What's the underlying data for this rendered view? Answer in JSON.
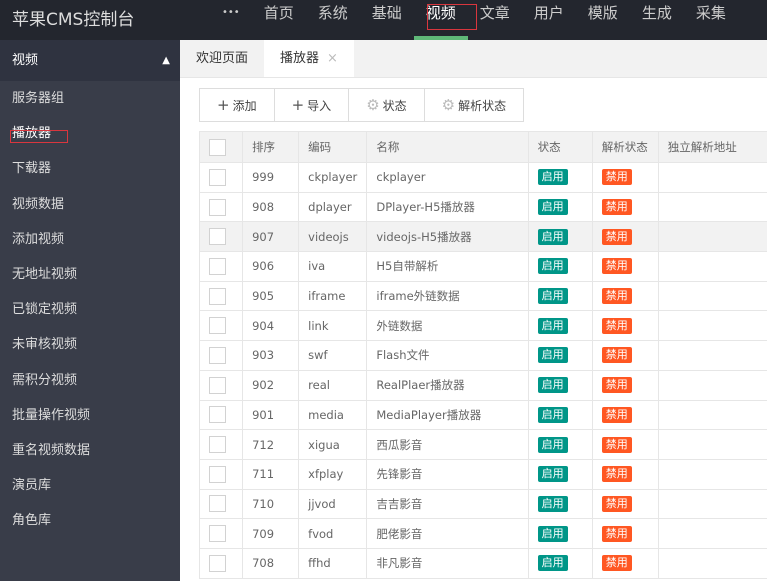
{
  "app": {
    "title": "苹果CMS控制台"
  },
  "nav": {
    "more": "•••",
    "items": [
      "首页",
      "系统",
      "基础",
      "视频",
      "文章",
      "用户",
      "模版",
      "生成",
      "采集"
    ],
    "active": 3
  },
  "sidebar": {
    "header": "视频",
    "items": [
      "服务器组",
      "播放器",
      "下载器",
      "视频数据",
      "添加视频",
      "无地址视频",
      "已锁定视频",
      "未审核视频",
      "需积分视频",
      "批量操作视频",
      "重名视频数据",
      "演员库",
      "角色库"
    ]
  },
  "tabs": [
    {
      "label": "欢迎页面"
    },
    {
      "label": "播放器",
      "close": "×"
    }
  ],
  "toolbar": {
    "add": "添加",
    "import": "导入",
    "status": "状态",
    "parse_status": "解析状态"
  },
  "colors": {
    "enabled": "#009688",
    "disabled": "#ff5722",
    "nav_active": "#5fb878"
  },
  "table": {
    "headers": [
      "排序",
      "编码",
      "名称",
      "状态",
      "解析状态",
      "独立解析地址"
    ],
    "rows": [
      [
        "999",
        "ckplayer",
        "ckplayer",
        "启用",
        "禁用"
      ],
      [
        "908",
        "dplayer",
        "DPlayer-H5播放器",
        "启用",
        "禁用"
      ],
      [
        "907",
        "videojs",
        "videojs-H5播放器",
        "启用",
        "禁用"
      ],
      [
        "906",
        "iva",
        "H5自带解析",
        "启用",
        "禁用"
      ],
      [
        "905",
        "iframe",
        "iframe外链数据",
        "启用",
        "禁用"
      ],
      [
        "904",
        "link",
        "外链数据",
        "启用",
        "禁用"
      ],
      [
        "903",
        "swf",
        "Flash文件",
        "启用",
        "禁用"
      ],
      [
        "902",
        "real",
        "RealPlaer播放器",
        "启用",
        "禁用"
      ],
      [
        "901",
        "media",
        "MediaPlayer播放器",
        "启用",
        "禁用"
      ],
      [
        "712",
        "xigua",
        "西瓜影音",
        "启用",
        "禁用"
      ],
      [
        "711",
        "xfplay",
        "先锋影音",
        "启用",
        "禁用"
      ],
      [
        "710",
        "jjvod",
        "吉吉影音",
        "启用",
        "禁用"
      ],
      [
        "709",
        "fvod",
        "肥佬影音",
        "启用",
        "禁用"
      ],
      [
        "708",
        "ffhd",
        "非凡影音",
        "启用",
        "禁用"
      ]
    ]
  }
}
